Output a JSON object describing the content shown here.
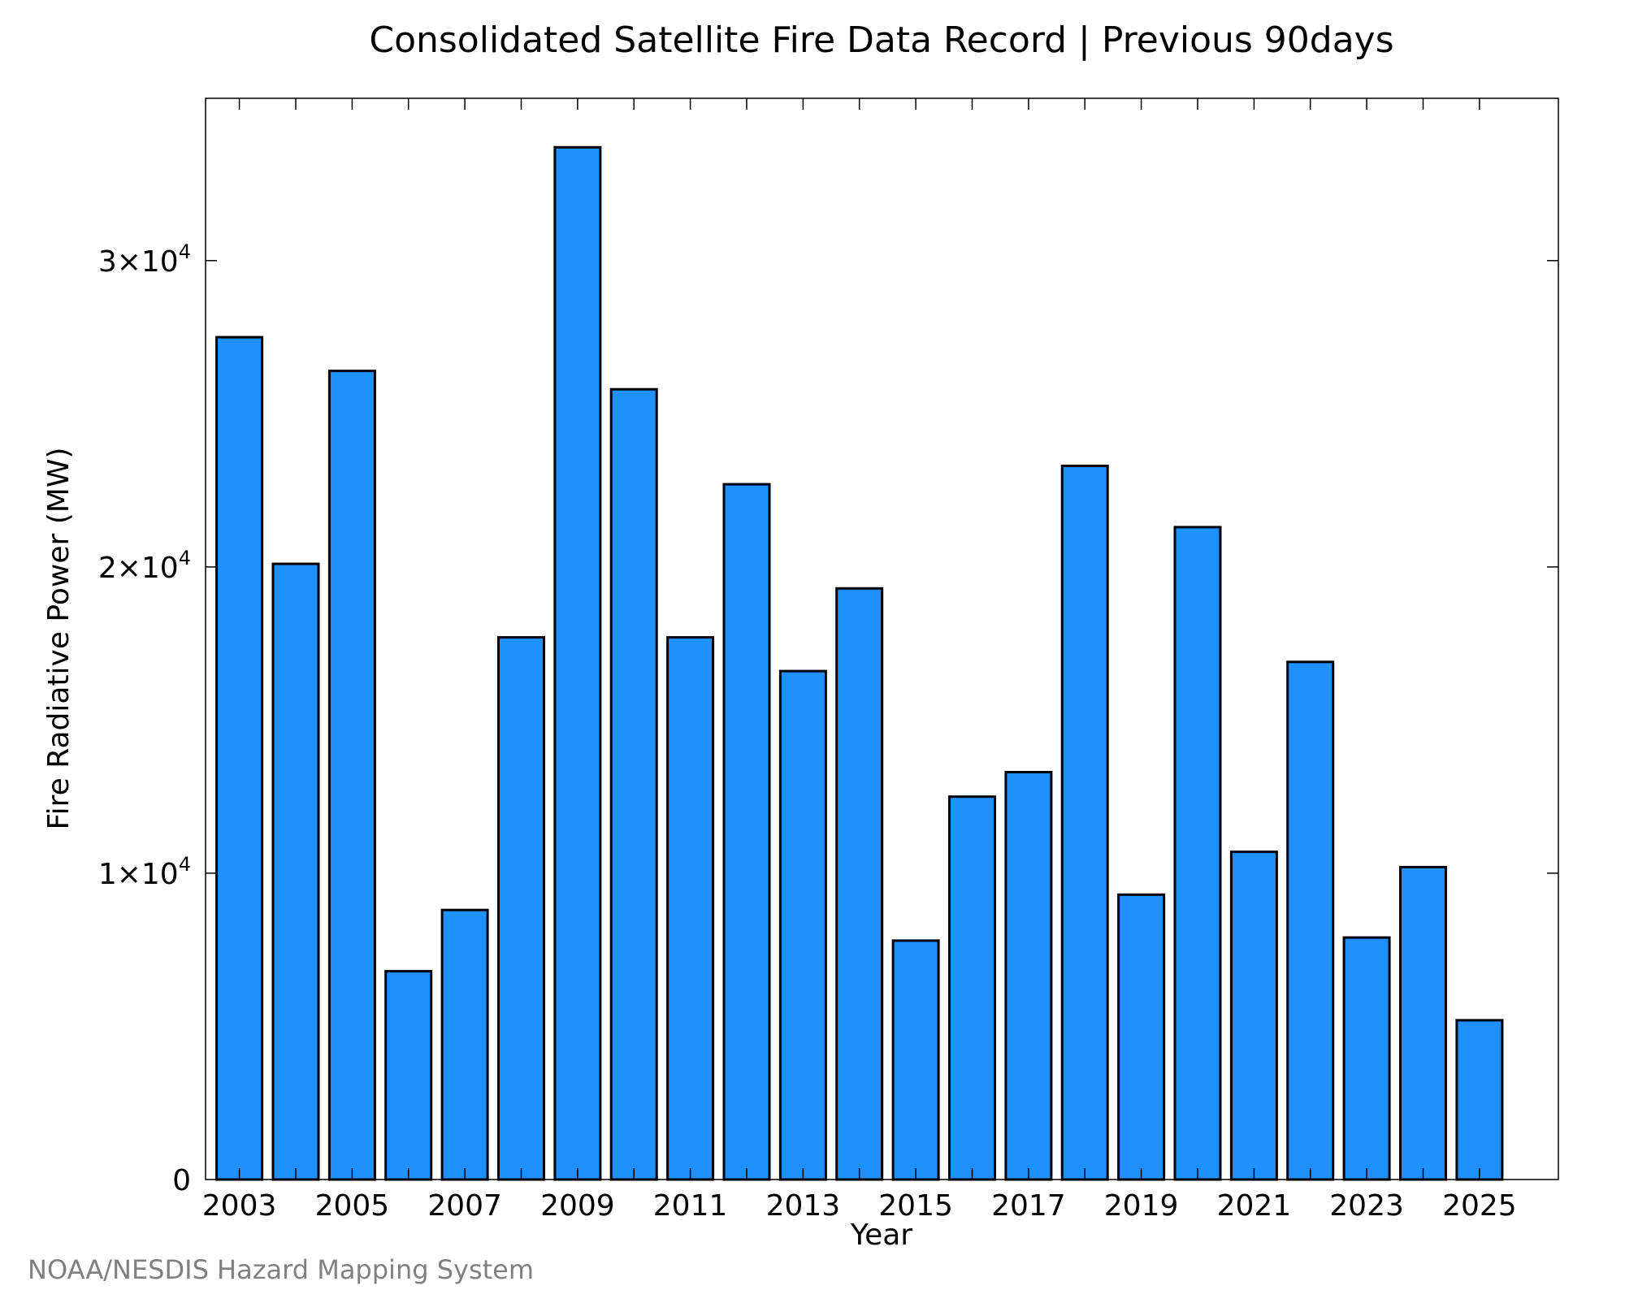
{
  "credit": "NOAA/NESDIS Hazard Mapping System",
  "colors": {
    "bar_fill": "#1e90ff",
    "bar_stroke": "#000000",
    "credit_text": "#808080"
  },
  "chart_data": {
    "type": "bar",
    "title": "Consolidated Satellite Fire Data Record | Previous 90days",
    "xlabel": "Year",
    "ylabel": "Fire Radiative Power (MW)",
    "categories": [
      2003,
      2004,
      2005,
      2006,
      2007,
      2008,
      2009,
      2010,
      2011,
      2012,
      2013,
      2014,
      2015,
      2016,
      2017,
      2018,
      2019,
      2020,
      2021,
      2022,
      2023,
      2024,
      2025
    ],
    "values": [
      27500,
      20100,
      26400,
      6800,
      8800,
      17700,
      33700,
      25800,
      17700,
      22700,
      16600,
      19300,
      7800,
      12500,
      13300,
      23300,
      9300,
      21300,
      10700,
      16900,
      7900,
      10200,
      5200
    ],
    "xtick_labels": [
      "2003",
      "2005",
      "2007",
      "2009",
      "2011",
      "2013",
      "2015",
      "2017",
      "2019",
      "2021",
      "2023",
      "2025"
    ],
    "ytick_values": [
      0,
      10000,
      20000,
      30000
    ],
    "ytick_labels": [
      {
        "base": "0",
        "exp": ""
      },
      {
        "base": "1×10",
        "exp": "4"
      },
      {
        "base": "2×10",
        "exp": "4"
      },
      {
        "base": "3×10",
        "exp": "4"
      }
    ],
    "ylim": [
      0,
      35300
    ],
    "xlim": [
      2002.4,
      2026.4
    ],
    "grid": false,
    "legend": "none"
  }
}
